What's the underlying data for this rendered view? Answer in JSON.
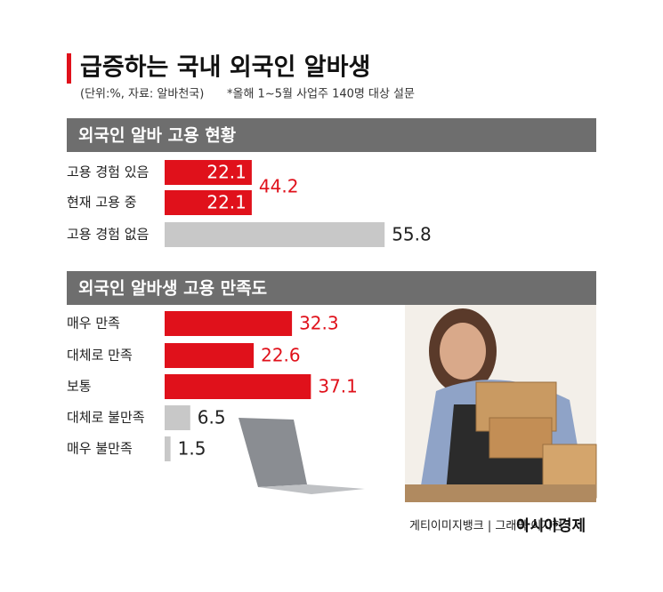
{
  "title": "급증하는 국내 외국인 알바생",
  "subtitle": "(단위:%, 자료: 알바천국)",
  "note": "*올해 1~5월 사업주 140명 대상 설문",
  "chart_data": [
    {
      "type": "bar",
      "orientation": "horizontal",
      "title": "외국인 알바 고용 현황",
      "categories": [
        "고용 경험 있음",
        "현재 고용 중",
        "고용 경험 없음"
      ],
      "values": [
        22.1,
        22.1,
        55.8
      ],
      "colors": [
        "#e0111b",
        "#e0111b",
        "#c8c8c8"
      ],
      "labels": "inside",
      "group_total": 44.2
    },
    {
      "type": "bar",
      "orientation": "horizontal",
      "title": "외국인 알바생 고용 만족도",
      "categories": [
        "매우 만족",
        "대체로 만족",
        "보통",
        "대체로 불만족",
        "매우 불만족"
      ],
      "values": [
        32.3,
        22.6,
        37.1,
        6.5,
        1.5
      ],
      "colors": [
        "#e0111b",
        "#e0111b",
        "#e0111b",
        "#c8c8c8",
        "#c8c8c8"
      ],
      "labels": "outside"
    }
  ],
  "credits": "게티이미지뱅크 | 그래픽 이지현",
  "brand": "아시아경제"
}
